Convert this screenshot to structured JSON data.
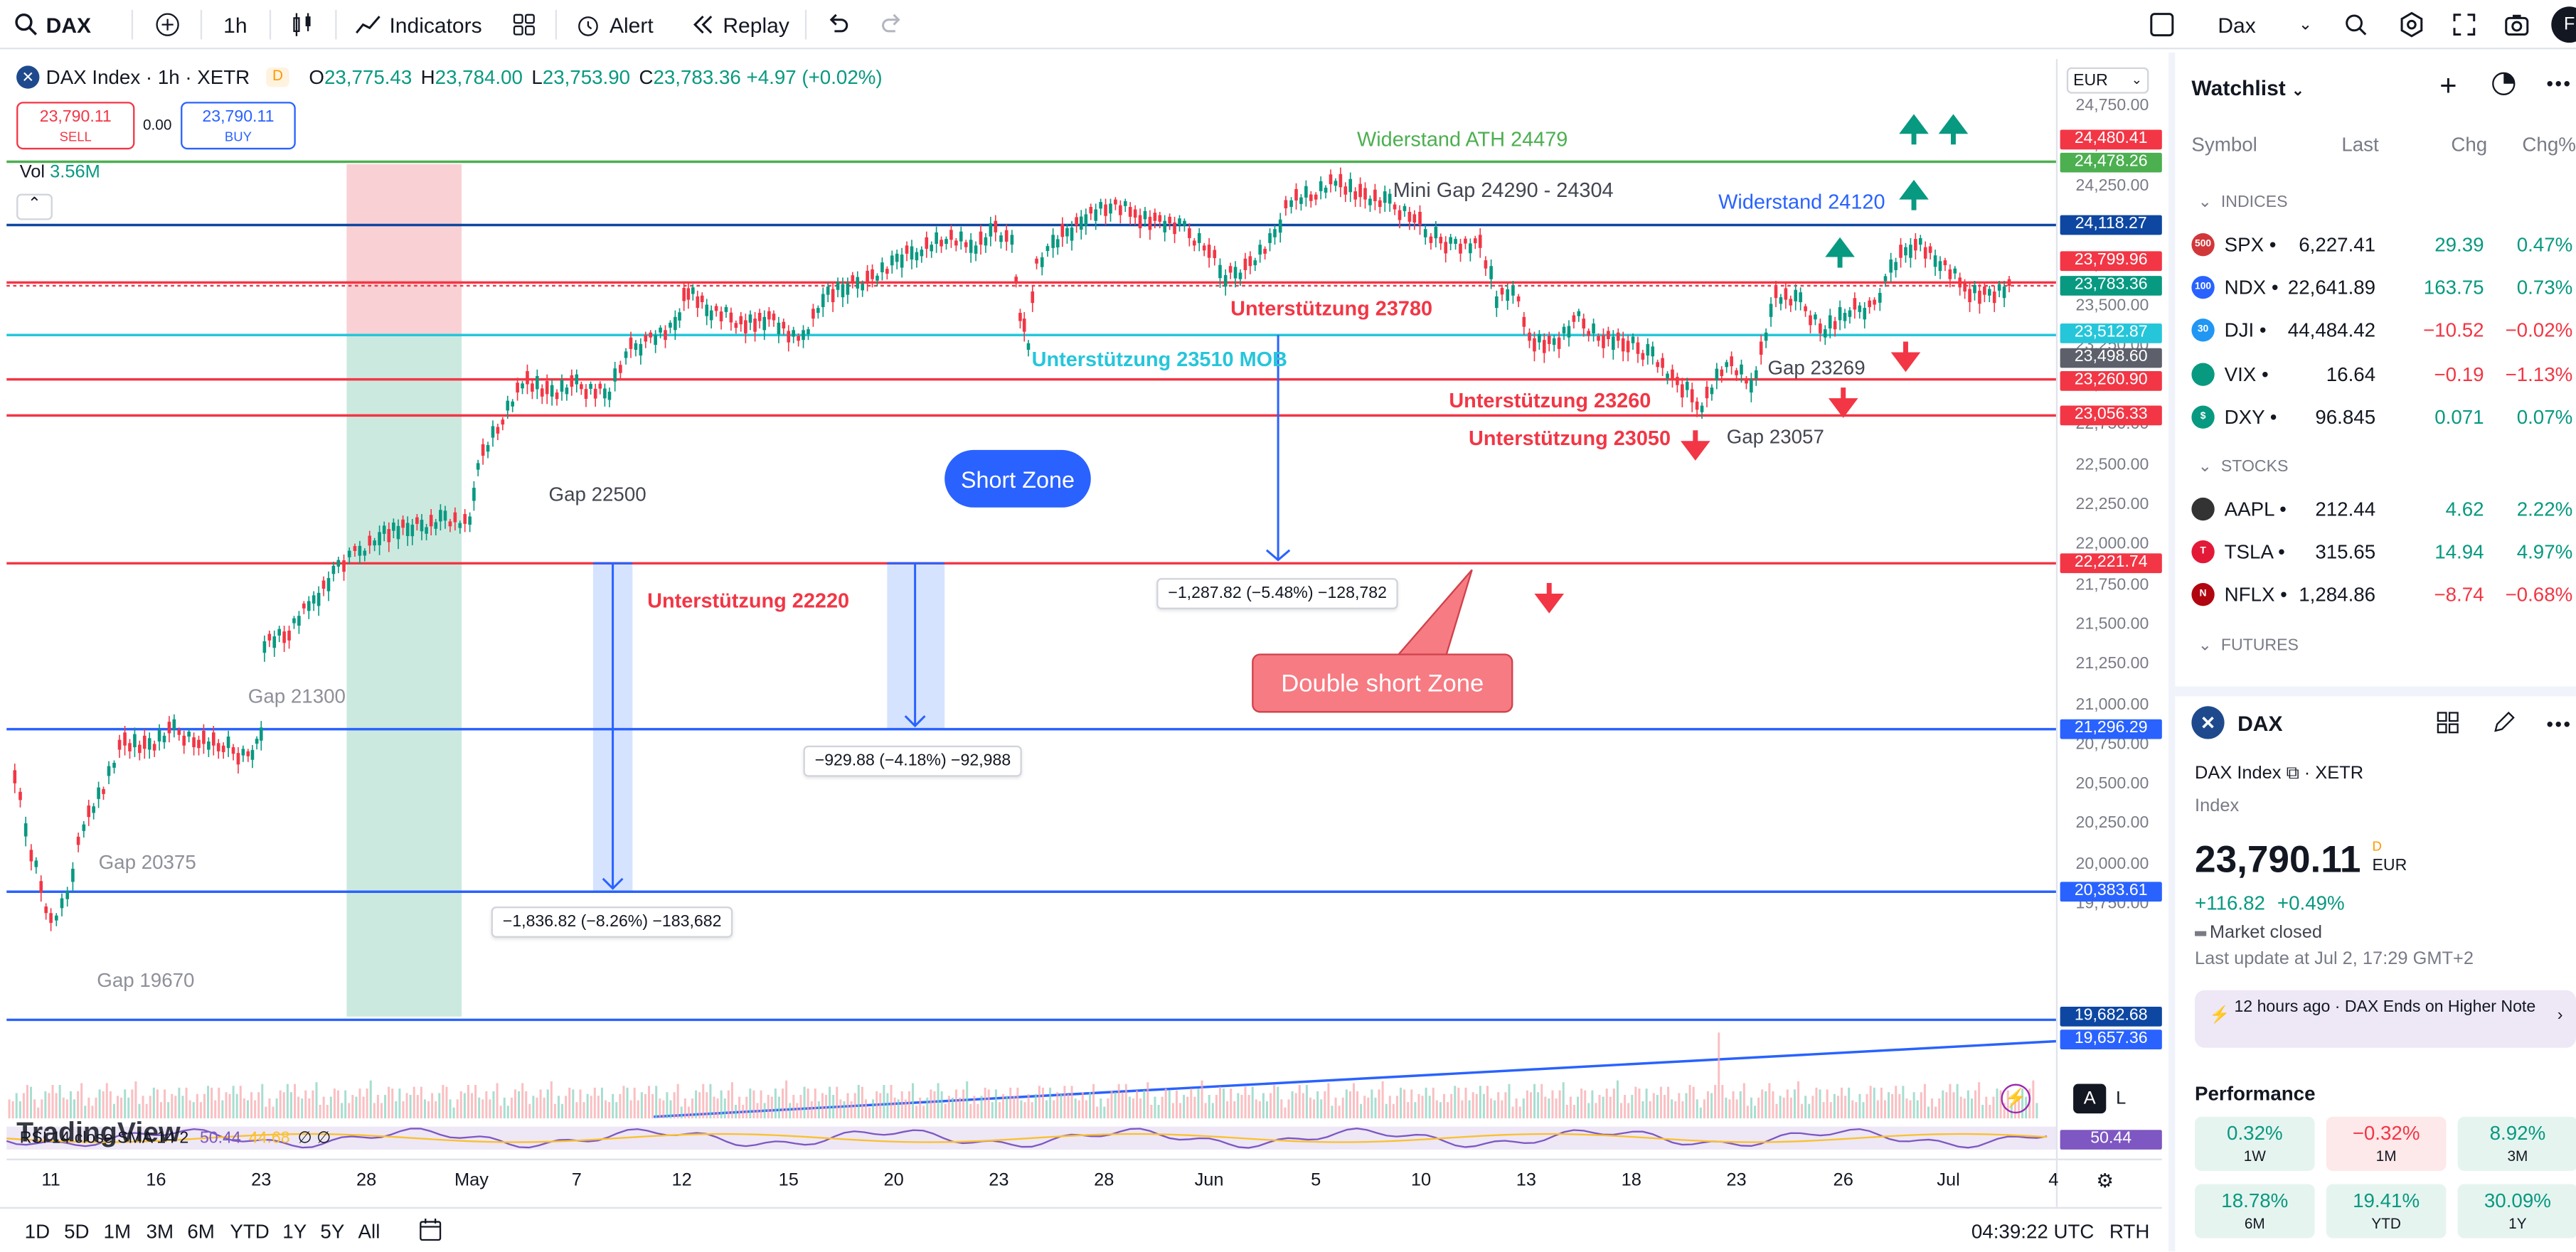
{
  "header": {
    "symbol": "DAX",
    "interval": "1h",
    "indicators": "Indicators",
    "alert": "Alert",
    "replay": "Replay",
    "layout_symbol": "Dax",
    "avatar_letter": "F"
  },
  "legend": {
    "title": "DAX Index · 1h · XETR",
    "badge": "D",
    "o_label": "O",
    "o": "23,775.43",
    "h_label": "H",
    "h": "23,784.00",
    "l_label": "L",
    "l": "23,753.90",
    "c_label": "C",
    "c": "23,783.36",
    "change": "+4.97 (+0.02%)",
    "sell_price": "23,790.11",
    "sell_label": "SELL",
    "spread": "0.00",
    "buy_price": "23,790.11",
    "buy_label": "BUY",
    "vol_label": "Vol",
    "vol_value": "3.56M"
  },
  "currency": "EUR",
  "price_axis": [
    "24,750.00",
    "24,500.00",
    "24,250.00",
    "24,000.00",
    "23,750.00",
    "23,500.00",
    "23,250.00",
    "23,000.00",
    "22,750.00",
    "22,500.00",
    "22,250.00",
    "22,000.00",
    "21,750.00",
    "21,500.00",
    "21,250.00",
    "21,000.00",
    "20,750.00",
    "20,500.00",
    "20,250.00",
    "20,000.00",
    "19,750.00"
  ],
  "price_labels": {
    "p24480": "24,480.41",
    "p24478": "24,478.26",
    "p24118": "24,118.27",
    "p23799": "23,799.96",
    "p23783": "23,783.36",
    "p23512": "23,512.87",
    "p23498": "23,498.60",
    "p23260": "23,260.90",
    "p23056": "23,056.33",
    "p22221": "22,221.74",
    "p21296": "21,296.29",
    "p20383": "20,383.61",
    "p19682": "19,682.68",
    "p19657": "19,657.36",
    "rsi": "50.44"
  },
  "annotations": {
    "ath": "Widerstand ATH  24479",
    "mini_gap": "Mini Gap 24290 - 24304",
    "widerstand": "Widerstand 24120",
    "u23780": "Unterstützung 23780",
    "u23510": "Unterstützung 23510 MOB",
    "u23260": "Unterstützung 23260",
    "u23050": "Unterstützung 23050",
    "u22220": "Unterstützung 22220",
    "short_zone": "Short Zone",
    "double_short": "Double short Zone",
    "gap23269": "Gap 23269",
    "gap23057": "Gap 23057",
    "gap22500": "Gap 22500",
    "gap21300": "Gap 21300",
    "gap20375": "Gap 20375",
    "gap19670": "Gap 19670"
  },
  "measures": {
    "m1": "−1,287.82 (−5.48%) −128,782",
    "m2": "−929.88 (−4.18%) −92,988",
    "m3": "−1,836.82 (−8.26%) −183,682"
  },
  "rsi": {
    "label": "RSI 14 close SMA 14 2",
    "v1": "50.44",
    "v2": "44.68",
    "v3": "∅ ∅"
  },
  "watermark": "TradingView",
  "x_axis": [
    "11",
    "16",
    "23",
    "28",
    "May",
    "7",
    "12",
    "15",
    "20",
    "23",
    "28",
    "Jun",
    "5",
    "10",
    "13",
    "18",
    "23",
    "26",
    "Jul",
    "4"
  ],
  "bottom": {
    "ranges": [
      "1D",
      "5D",
      "1M",
      "3M",
      "6M",
      "YTD",
      "1Y",
      "5Y",
      "All"
    ],
    "clock": "04:39:22 UTC",
    "rth": "RTH",
    "scale_a": "A",
    "scale_l": "L"
  },
  "watchlist": {
    "title": "Watchlist",
    "columns": {
      "symbol": "Symbol",
      "last": "Last",
      "chg": "Chg",
      "pct": "Chg%"
    },
    "sections": {
      "indices": "INDICES",
      "stocks": "STOCKS",
      "futures": "FUTURES"
    },
    "indices": [
      {
        "icon": "500",
        "icon_color": "#d1373a",
        "symbol": "SPX",
        "last": "6,227.41",
        "chg": "29.39",
        "pct": "0.47%",
        "dir": "up"
      },
      {
        "icon": "100",
        "icon_color": "#2962ff",
        "symbol": "NDX",
        "last": "22,641.89",
        "chg": "163.75",
        "pct": "0.73%",
        "dir": "up"
      },
      {
        "icon": "30",
        "icon_color": "#2196f3",
        "symbol": "DJI",
        "last": "44,484.42",
        "chg": "−10.52",
        "pct": "−0.02%",
        "dir": "dn"
      },
      {
        "icon": "",
        "icon_color": "#089981",
        "symbol": "VIX",
        "last": "16.64",
        "chg": "−0.19",
        "pct": "−1.13%",
        "dir": "dn"
      },
      {
        "icon": "$",
        "icon_color": "#089981",
        "symbol": "DXY",
        "last": "96.845",
        "chg": "0.071",
        "pct": "0.07%",
        "dir": "up"
      }
    ],
    "stocks": [
      {
        "icon": "",
        "icon_color": "#333333",
        "symbol": "AAPL",
        "last": "212.44",
        "chg": "4.62",
        "pct": "2.22%",
        "dir": "up"
      },
      {
        "icon": "T",
        "icon_color": "#e31937",
        "symbol": "TSLA",
        "last": "315.65",
        "chg": "14.94",
        "pct": "4.97%",
        "dir": "up"
      },
      {
        "icon": "N",
        "icon_color": "#b1060f",
        "symbol": "NFLX",
        "last": "1,284.86",
        "chg": "−8.74",
        "pct": "−0.68%",
        "dir": "dn"
      }
    ]
  },
  "details": {
    "symbol": "DAX",
    "name": "DAX Index",
    "exchange": "XETR",
    "type": "Index",
    "price": "23,790.11",
    "badge": "D",
    "currency": "EUR",
    "change": "+116.82",
    "change_pct": "+0.49%",
    "market": "Market closed",
    "last_update": "Last update at Jul 2, 17:29 GMT+2",
    "news": "12 hours ago · DAX Ends on Higher Note",
    "performance_title": "Performance",
    "performance": [
      {
        "value": "0.32%",
        "period": "1W",
        "dir": "up"
      },
      {
        "value": "−0.32%",
        "period": "1M",
        "dir": "dn"
      },
      {
        "value": "8.92%",
        "period": "3M",
        "dir": "up"
      },
      {
        "value": "18.78%",
        "period": "6M",
        "dir": "up"
      },
      {
        "value": "19.41%",
        "period": "YTD",
        "dir": "up"
      },
      {
        "value": "30.09%",
        "period": "1Y",
        "dir": "up"
      }
    ]
  },
  "colors": {
    "green": "#089981",
    "red": "#f23645",
    "blue": "#2962ff",
    "cyan": "#26c6da",
    "navy": "#0d47a1",
    "ath": "#4caf50"
  }
}
